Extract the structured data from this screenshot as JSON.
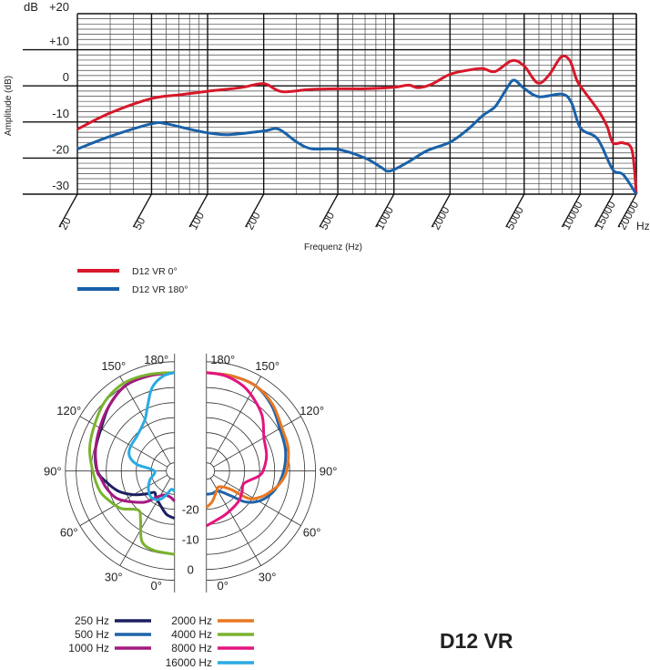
{
  "chart_data": [
    {
      "type": "line",
      "xlabel": "Frequenz (Hz)",
      "ylabel": "Amplitude (dB)",
      "y_unit_label": "dB",
      "x_unit_label": "Hz",
      "x_scale": "log",
      "xlim": [
        20,
        20000
      ],
      "ylim": [
        -30,
        20
      ],
      "grid": true,
      "legend_placement": "bottom-left",
      "x_ticks": [
        20,
        50,
        100,
        200,
        500,
        1000,
        2000,
        5000,
        10000,
        15000,
        20000
      ],
      "x_tick_labels": [
        "20",
        "50",
        "100",
        "200",
        "500",
        "1000",
        "2000",
        "5000",
        "10000",
        "15000",
        "20000"
      ],
      "y_ticks": [
        20,
        10,
        0,
        -10,
        -20,
        -30
      ],
      "y_tick_labels": [
        "+20",
        "+10",
        "0",
        "-10",
        "-20",
        "-30"
      ],
      "series": [
        {
          "name": "D12 VR 0°",
          "color": "#d7182a",
          "points": [
            [
              20,
              -12
            ],
            [
              30,
              -7.5
            ],
            [
              50,
              -3.5
            ],
            [
              70,
              -2.5
            ],
            [
              100,
              -1.5
            ],
            [
              150,
              -0.5
            ],
            [
              200,
              0.6
            ],
            [
              250,
              -1.6
            ],
            [
              350,
              -1
            ],
            [
              500,
              -0.8
            ],
            [
              700,
              -0.8
            ],
            [
              1000,
              -0.4
            ],
            [
              1200,
              0.2
            ],
            [
              1350,
              -0.5
            ],
            [
              1600,
              0.5
            ],
            [
              2000,
              3.2
            ],
            [
              2600,
              4.5
            ],
            [
              3000,
              4.8
            ],
            [
              3500,
              4
            ],
            [
              4300,
              7
            ],
            [
              5000,
              5.5
            ],
            [
              5900,
              0.8
            ],
            [
              6800,
              3
            ],
            [
              7900,
              8
            ],
            [
              8800,
              7
            ],
            [
              9600,
              1.5
            ],
            [
              10500,
              -1.5
            ],
            [
              12000,
              -5.5
            ],
            [
              13000,
              -8.2
            ],
            [
              14000,
              -11.5
            ],
            [
              15000,
              -15.8
            ],
            [
              17000,
              -15.8
            ],
            [
              19000,
              -18
            ],
            [
              20000,
              -30
            ]
          ]
        },
        {
          "name": "D12 VR 180°",
          "color": "#1961a8",
          "points": [
            [
              20,
              -17.5
            ],
            [
              30,
              -14
            ],
            [
              50,
              -10.5
            ],
            [
              60,
              -10.5
            ],
            [
              80,
              -12
            ],
            [
              100,
              -13
            ],
            [
              130,
              -13.5
            ],
            [
              200,
              -12.5
            ],
            [
              240,
              -12
            ],
            [
              300,
              -15.5
            ],
            [
              360,
              -17.4
            ],
            [
              500,
              -17.6
            ],
            [
              700,
              -20
            ],
            [
              850,
              -22.5
            ],
            [
              950,
              -23.6
            ],
            [
              1200,
              -21
            ],
            [
              1500,
              -18
            ],
            [
              2000,
              -15.6
            ],
            [
              2500,
              -12
            ],
            [
              3000,
              -8.2
            ],
            [
              3500,
              -5.7
            ],
            [
              4000,
              -1
            ],
            [
              4400,
              1.6
            ],
            [
              5000,
              -0.7
            ],
            [
              6000,
              -3
            ],
            [
              8000,
              -2.3
            ],
            [
              9000,
              -4.8
            ],
            [
              10000,
              -11.6
            ],
            [
              12000,
              -14
            ],
            [
              13000,
              -16.6
            ],
            [
              15000,
              -23.3
            ],
            [
              17000,
              -24.6
            ],
            [
              20000,
              -30
            ]
          ]
        }
      ]
    },
    {
      "type": "polar",
      "angle_unit": "deg",
      "r_unit": "dB",
      "r_tick_labels": [
        "-20",
        "-10",
        "0"
      ],
      "r_ticks": [
        -20,
        -10,
        0
      ],
      "angle_tick_labels": [
        "180°",
        "150°",
        "120°",
        "90°",
        "60°",
        "30°",
        "0°"
      ],
      "angle_ticks": [
        180,
        150,
        120,
        90,
        60,
        30,
        0
      ],
      "legend_placement": "bottom-left",
      "series": [
        {
          "name": "250 Hz",
          "color": "#1c1f5e",
          "side": "left",
          "points": [
            [
              0,
              -17
            ],
            [
              10,
              -18
            ],
            [
              20,
              -20
            ],
            [
              35,
              -22
            ],
            [
              43,
              -23
            ],
            [
              50,
              -21
            ],
            [
              60,
              -17
            ],
            [
              70,
              -13
            ],
            [
              80,
              -10
            ],
            [
              90,
              -7
            ],
            [
              105,
              -5.5
            ],
            [
              120,
              -4.5
            ],
            [
              135,
              -2
            ],
            [
              150,
              0
            ],
            [
              165,
              0.3
            ],
            [
              180,
              0
            ]
          ]
        },
        {
          "name": "500 Hz",
          "color": "#1f63a8",
          "side": "right",
          "points": [
            [
              0,
              -25
            ],
            [
              15,
              -25
            ],
            [
              31,
              -25
            ],
            [
              45,
              -21
            ],
            [
              52,
              -16
            ],
            [
              62,
              -12
            ],
            [
              75,
              -9
            ],
            [
              90,
              -7
            ],
            [
              105,
              -5.5
            ],
            [
              120,
              -4.5
            ],
            [
              135,
              -2
            ],
            [
              150,
              0
            ],
            [
              165,
              0
            ],
            [
              180,
              0
            ]
          ]
        },
        {
          "name": "1000 Hz",
          "color": "#a3197f",
          "side": "left",
          "points": [
            [
              0,
              -22.7
            ],
            [
              10,
              -24
            ],
            [
              24,
              -24
            ],
            [
              35,
              -22
            ],
            [
              45,
              -18
            ],
            [
              63,
              -12
            ],
            [
              75,
              -9.5
            ],
            [
              85,
              -8
            ],
            [
              90,
              -7
            ],
            [
              105,
              -5.5
            ],
            [
              120,
              -4
            ],
            [
              135,
              -2
            ],
            [
              150,
              0
            ],
            [
              165,
              0
            ],
            [
              180,
              0
            ]
          ]
        },
        {
          "name": "2000 Hz",
          "color": "#e87722",
          "side": "right",
          "points": [
            [
              0,
              -20.6
            ],
            [
              11,
              -22.4
            ],
            [
              25,
              -25
            ],
            [
              39,
              -26
            ],
            [
              53,
              -22.6
            ],
            [
              57,
              -16
            ],
            [
              65,
              -12.5
            ],
            [
              72,
              -10.4
            ],
            [
              80,
              -8
            ],
            [
              90,
              -6
            ],
            [
              105,
              -4.5
            ],
            [
              117,
              -4
            ],
            [
              135,
              -1.5
            ],
            [
              150,
              0
            ],
            [
              165,
              0
            ],
            [
              180,
              0
            ]
          ]
        },
        {
          "name": "4000 Hz",
          "color": "#7ab32e",
          "side": "left",
          "points": [
            [
              0,
              -5
            ],
            [
              15,
              -5.5
            ],
            [
              25,
              -7
            ],
            [
              35,
              -13
            ],
            [
              43,
              -15
            ],
            [
              55,
              -11
            ],
            [
              65,
              -9
            ],
            [
              75,
              -7
            ],
            [
              90,
              -5.5
            ],
            [
              105,
              -3.5
            ],
            [
              120,
              -2
            ],
            [
              135,
              0
            ],
            [
              150,
              1
            ],
            [
              165,
              0.5
            ],
            [
              180,
              0
            ]
          ]
        },
        {
          "name": "8000 Hz",
          "color": "#e4147f",
          "side": "right",
          "points": [
            [
              0,
              -14.5
            ],
            [
              11,
              -16
            ],
            [
              25,
              -17
            ],
            [
              46,
              -18
            ],
            [
              60,
              -19
            ],
            [
              72,
              -19.5
            ],
            [
              85,
              -15
            ],
            [
              93,
              -13.5
            ],
            [
              105,
              -12
            ],
            [
              120,
              -10.6
            ],
            [
              136,
              -6.3
            ],
            [
              154,
              -2.4
            ],
            [
              168,
              -0.5
            ],
            [
              180,
              0
            ]
          ]
        },
        {
          "name": "16000 Hz",
          "color": "#29abe2",
          "side": "left",
          "points": [
            [
              0,
              -26
            ],
            [
              10,
              -26.5
            ],
            [
              20,
              -24
            ],
            [
              28,
              -22
            ],
            [
              40,
              -21
            ],
            [
              54,
              -22
            ],
            [
              70,
              -24
            ],
            [
              90,
              -26
            ],
            [
              100,
              -20
            ],
            [
              108,
              -17
            ],
            [
              118,
              -16
            ],
            [
              135,
              -15.5
            ],
            [
              150,
              -13
            ],
            [
              158,
              -9
            ],
            [
              165,
              -4
            ],
            [
              173,
              -1
            ],
            [
              180,
              0
            ]
          ]
        }
      ]
    }
  ],
  "model_label": "D12 VR"
}
